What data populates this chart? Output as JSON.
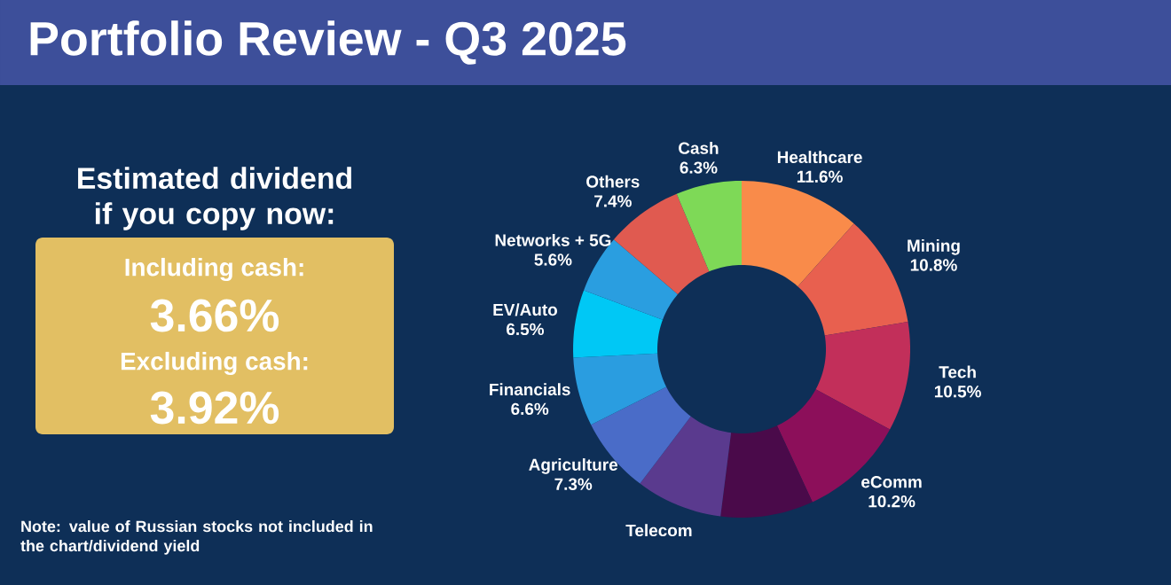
{
  "chart_data": {
    "type": "donut",
    "title": "Portfolio Review - Q3 2025",
    "subtitle": "Estimated dividend if you copy now:",
    "categories": [
      "Healthcare",
      "Mining",
      "Tech",
      "eComm",
      null,
      "Telecom",
      "Agriculture",
      "Financials",
      "EV/Auto",
      "Networks + 5G",
      "Others",
      "Cash"
    ],
    "values": [
      11.6,
      10.8,
      10.5,
      10.2,
      8.9,
      8.3,
      7.3,
      6.6,
      6.5,
      5.6,
      7.4,
      6.3
    ],
    "value_labels": [
      "11.6%",
      "10.8%",
      "10.5%",
      "10.2%",
      null,
      null,
      "7.3%",
      "6.6%",
      "6.5%",
      "5.6%",
      "7.4%",
      "6.3%"
    ],
    "colors": [
      "#f98b4a",
      "#e8604f",
      "#c22f5a",
      "#8c0f5a",
      "#4a0a4a",
      "#5a3a8e",
      "#4a6cc8",
      "#2a9de0",
      "#00c8f5",
      "#2a9ee0",
      "#e05a50",
      "#7ed957"
    ],
    "annotations": [
      "Including cash:",
      "3.66%",
      "Excluding cash:",
      "3.92%",
      "Note: value of Russian stocks not included in the chart/dividend yield"
    ]
  }
}
